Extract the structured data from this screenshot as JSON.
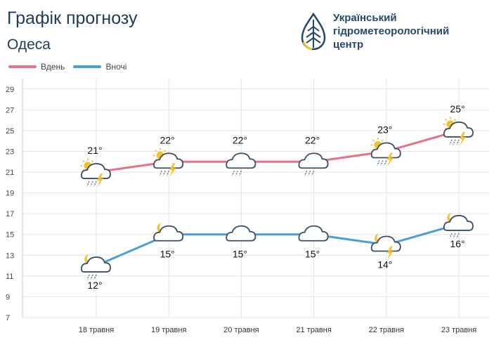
{
  "header": {
    "title": "Графік прогнозу",
    "city": "Одеса"
  },
  "logo": {
    "line1": "Український",
    "line2": "гідрометеорологічний",
    "line3": "центр",
    "icon": "water-drop-logo-icon"
  },
  "colors": {
    "day": "#e8708a",
    "night": "#4a9fd8",
    "text": "#1f3b57",
    "grid": "#e3e3e3"
  },
  "chart_data": {
    "type": "line",
    "categories": [
      "18 травня",
      "19 травня",
      "20 травня",
      "21 травня",
      "22 травня",
      "23 травня"
    ],
    "series": [
      {
        "name": "Вдень",
        "values": [
          21,
          22,
          22,
          22,
          23,
          25
        ],
        "labels": [
          "21°",
          "22°",
          "22°",
          "22°",
          "23°",
          "25°"
        ],
        "icons": [
          "sun-cloud-rain-thunder-icon",
          "sun-cloud-rain-thunder-icon",
          "cloud-rain-icon",
          "cloud-rain-icon",
          "sun-cloud-rain-thunder-icon",
          "sun-cloud-rain-thunder-icon"
        ]
      },
      {
        "name": "Вночі",
        "values": [
          12,
          15,
          15,
          15,
          14,
          16
        ],
        "labels": [
          "12°",
          "15°",
          "15°",
          "15°",
          "14°",
          "16°"
        ],
        "icons": [
          "moon-cloud-rain-icon",
          "moon-cloud-icon",
          "cloud-icon",
          "cloud-icon",
          "moon-cloud-thunder-icon",
          "moon-cloud-rain-icon"
        ]
      }
    ],
    "y_ticks": [
      7,
      9,
      11,
      13,
      15,
      17,
      19,
      21,
      23,
      25,
      27,
      29
    ],
    "ylim": [
      7,
      30
    ],
    "grid": true,
    "legend": "top-left"
  }
}
